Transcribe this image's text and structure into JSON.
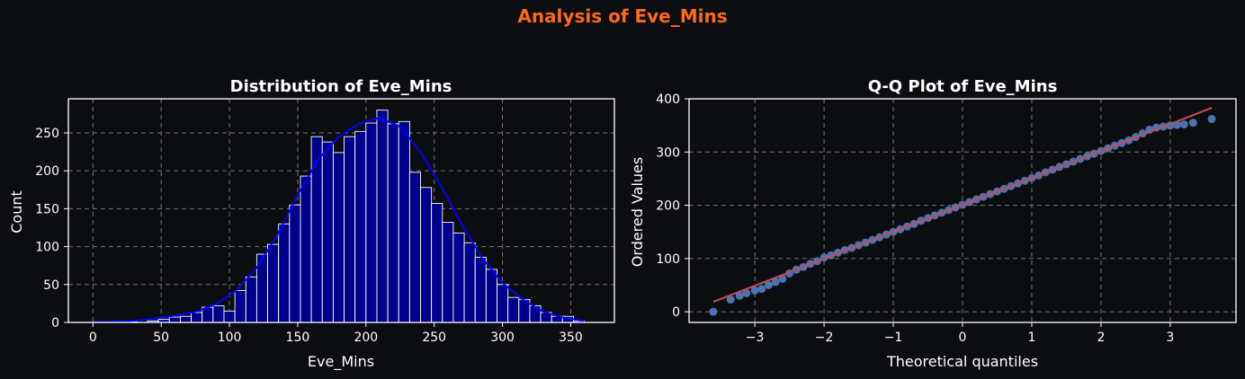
{
  "figure": {
    "title": "Analysis of Eve_Mins",
    "title_color": "#ff6a13",
    "background": "#0b0d11"
  },
  "chart_data": [
    {
      "type": "bar",
      "subtype": "histogram-with-kde",
      "title": "Distribution of Eve_Mins",
      "xlabel": "Eve_Mins",
      "ylabel": "Count",
      "xlim": [
        -18,
        382
      ],
      "ylim": [
        0,
        295
      ],
      "xticks": [
        0,
        50,
        100,
        150,
        200,
        250,
        300,
        350
      ],
      "yticks": [
        0,
        50,
        100,
        150,
        200,
        250
      ],
      "grid": true,
      "bar_color": "#00008b",
      "bar_edge_color": "#ffffff",
      "kde_color": "#0000ff",
      "bin_edges": [
        0,
        8,
        16,
        24,
        32,
        40,
        48,
        56,
        64,
        72,
        80,
        88,
        96,
        104,
        112,
        120,
        128,
        136,
        144,
        152,
        160,
        168,
        176,
        184,
        192,
        200,
        208,
        216,
        224,
        232,
        240,
        248,
        256,
        264,
        272,
        280,
        288,
        296,
        304,
        312,
        320,
        328,
        336,
        344,
        352,
        360,
        368
      ],
      "counts": [
        1,
        0,
        0,
        1,
        0,
        2,
        4,
        7,
        8,
        13,
        20,
        22,
        15,
        42,
        60,
        90,
        103,
        130,
        155,
        193,
        245,
        238,
        224,
        245,
        252,
        263,
        280,
        262,
        265,
        198,
        178,
        157,
        132,
        118,
        105,
        86,
        70,
        50,
        33,
        30,
        22,
        13,
        8,
        8,
        2,
        0
      ],
      "kde": {
        "x": [
          0,
          15,
          30,
          45,
          60,
          75,
          90,
          105,
          120,
          135,
          150,
          165,
          180,
          195,
          210,
          225,
          240,
          255,
          270,
          285,
          300,
          315,
          330,
          345,
          360
        ],
        "y": [
          0.5,
          1,
          2,
          5,
          9,
          14,
          24,
          42,
          72,
          115,
          168,
          215,
          245,
          262,
          270,
          258,
          225,
          180,
          130,
          85,
          52,
          30,
          14,
          6,
          2
        ]
      }
    },
    {
      "type": "scatter",
      "subtype": "qq-plot",
      "title": "Q-Q Plot of Eve_Mins",
      "xlabel": "Theoretical quantiles",
      "ylabel": "Ordered Values",
      "xlim": [
        -3.95,
        3.95
      ],
      "ylim": [
        -20,
        400
      ],
      "xticks": [
        -3,
        -2,
        -1,
        0,
        1,
        2,
        3
      ],
      "xtick_labels": [
        "−3",
        "−2",
        "−1",
        "0",
        "1",
        "2",
        "3"
      ],
      "yticks": [
        0,
        100,
        200,
        300,
        400
      ],
      "grid": true,
      "point_color": "#4c72b0",
      "line_color": "#c44e52",
      "fit_line": {
        "slope": 50.6,
        "intercept": 200.8,
        "x_range": [
          -3.6,
          3.6
        ]
      },
      "points": [
        [
          -3.6,
          0
        ],
        [
          -3.35,
          23
        ],
        [
          -3.22,
          30
        ],
        [
          -3.12,
          35
        ],
        [
          -3.0,
          40
        ],
        [
          -2.9,
          43
        ],
        [
          -2.8,
          50
        ],
        [
          -2.7,
          56
        ],
        [
          -2.6,
          62
        ],
        [
          -2.5,
          72
        ],
        [
          -2.4,
          79
        ],
        [
          -2.3,
          84
        ],
        [
          -2.2,
          90
        ],
        [
          -2.1,
          95
        ],
        [
          -2.0,
          102
        ],
        [
          -1.9,
          106
        ],
        [
          -1.8,
          111
        ],
        [
          -1.7,
          116
        ],
        [
          -1.6,
          120
        ],
        [
          -1.5,
          125
        ],
        [
          -1.4,
          130
        ],
        [
          -1.3,
          135
        ],
        [
          -1.2,
          140
        ],
        [
          -1.1,
          145
        ],
        [
          -1.0,
          150
        ],
        [
          -0.9,
          155
        ],
        [
          -0.8,
          160
        ],
        [
          -0.7,
          165
        ],
        [
          -0.6,
          171
        ],
        [
          -0.5,
          176
        ],
        [
          -0.4,
          181
        ],
        [
          -0.3,
          186
        ],
        [
          -0.2,
          191
        ],
        [
          -0.1,
          196
        ],
        [
          0.0,
          201
        ],
        [
          0.1,
          206
        ],
        [
          0.2,
          211
        ],
        [
          0.3,
          216
        ],
        [
          0.4,
          221
        ],
        [
          0.5,
          226
        ],
        [
          0.6,
          231
        ],
        [
          0.7,
          236
        ],
        [
          0.8,
          241
        ],
        [
          0.9,
          246
        ],
        [
          1.0,
          251
        ],
        [
          1.1,
          256
        ],
        [
          1.2,
          262
        ],
        [
          1.3,
          267
        ],
        [
          1.4,
          272
        ],
        [
          1.5,
          277
        ],
        [
          1.6,
          282
        ],
        [
          1.7,
          287
        ],
        [
          1.8,
          292
        ],
        [
          1.9,
          297
        ],
        [
          2.0,
          302
        ],
        [
          2.1,
          307
        ],
        [
          2.2,
          312
        ],
        [
          2.3,
          317
        ],
        [
          2.4,
          322
        ],
        [
          2.5,
          328
        ],
        [
          2.6,
          335
        ],
        [
          2.7,
          342
        ],
        [
          2.8,
          346
        ],
        [
          2.9,
          348
        ],
        [
          3.0,
          350
        ],
        [
          3.1,
          351
        ],
        [
          3.2,
          352
        ],
        [
          3.33,
          355
        ],
        [
          3.6,
          362
        ]
      ]
    }
  ]
}
